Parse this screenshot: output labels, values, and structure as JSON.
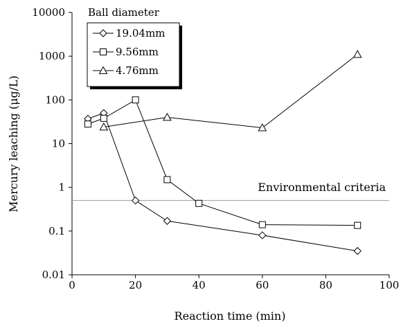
{
  "chart_data": {
    "type": "line",
    "xlabel": "Reaction time (min)",
    "ylabel": "Mercury leaching (μg/L)",
    "xlim": [
      0,
      100
    ],
    "ylim": [
      0.01,
      10000
    ],
    "yscale": "log",
    "grid": false,
    "xticks": [
      "0",
      "20",
      "40",
      "60",
      "80",
      "100"
    ],
    "yticks": [
      "0.01",
      "0.1",
      "1",
      "10",
      "100",
      "1000",
      "10000"
    ],
    "legend_title": "Ball diameter",
    "legend_position": "top-left",
    "reference_line": {
      "y": 0.5,
      "label": "Environmental criteria"
    },
    "series": [
      {
        "name": "19.04mm",
        "marker": "diamond",
        "x": [
          5,
          10,
          20,
          30,
          60,
          90
        ],
        "y": [
          37,
          50,
          0.5,
          0.17,
          0.08,
          0.035
        ]
      },
      {
        "name": "9.56mm",
        "marker": "square",
        "x": [
          5,
          10,
          20,
          30,
          40,
          60,
          90
        ],
        "y": [
          28,
          38,
          100,
          1.5,
          0.43,
          0.14,
          0.135
        ]
      },
      {
        "name": "4.76mm",
        "marker": "triangle",
        "x": [
          10,
          30,
          60,
          90
        ],
        "y": [
          24,
          40,
          23,
          1100
        ]
      }
    ]
  },
  "colors": {
    "line": "#000000",
    "reference": "#999999",
    "marker_fill": "#ffffff"
  }
}
